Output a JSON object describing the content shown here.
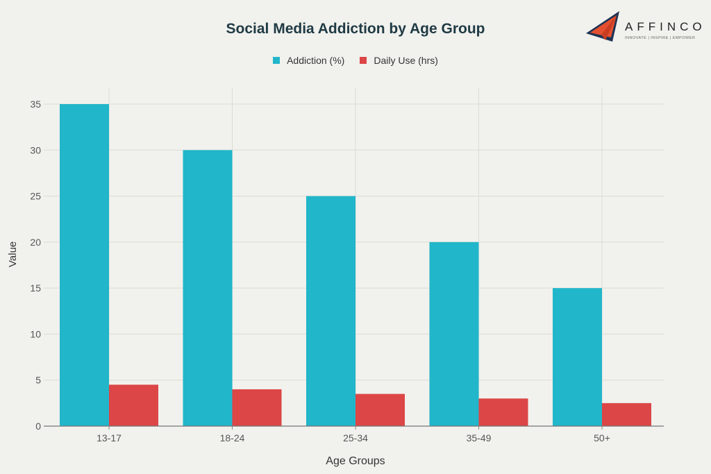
{
  "logo": {
    "name": "AFFINCO",
    "tagline": "INNOVATE | INSPIRE | EMPOWER"
  },
  "chart_data": {
    "type": "bar",
    "title": "Social Media Addiction by Age Group",
    "xlabel": "Age Groups",
    "ylabel": "Value",
    "categories": [
      "13-17",
      "18-24",
      "25-34",
      "35-49",
      "50+"
    ],
    "series": [
      {
        "name": "Addiction (%)",
        "color": "#21b6c9",
        "values": [
          35,
          30,
          25,
          20,
          15
        ]
      },
      {
        "name": "Daily Use (hrs)",
        "color": "#dc4646",
        "values": [
          4.5,
          4,
          3.5,
          3,
          2.5
        ]
      }
    ],
    "ylim": [
      0,
      35
    ],
    "yticks": [
      0,
      5,
      10,
      15,
      20,
      25,
      30,
      35
    ],
    "grid": true,
    "legend": "top-center"
  }
}
